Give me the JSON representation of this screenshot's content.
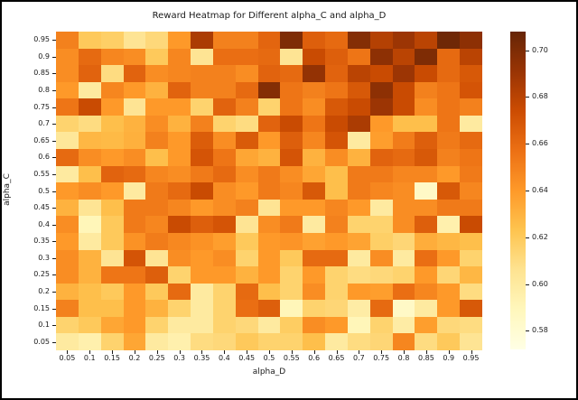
{
  "chart_data": {
    "type": "heatmap",
    "title": "Reward Heatmap for Different alpha_C and alpha_D",
    "xlabel": "alpha_D",
    "ylabel": "alpha_C",
    "x_ticks": [
      "0.05",
      "0.1",
      "0.15",
      "0.2",
      "0.25",
      "0.3",
      "0.35",
      "0.4",
      "0.45",
      "0.5",
      "0.55",
      "0.6",
      "0.65",
      "0.7",
      "0.75",
      "0.8",
      "0.85",
      "0.9",
      "0.95"
    ],
    "y_ticks": [
      "0.95",
      "0.9",
      "0.85",
      "0.8",
      "0.75",
      "0.7",
      "0.65",
      "0.6",
      "0.55",
      "0.5",
      "0.45",
      "0.4",
      "0.35",
      "0.3",
      "0.25",
      "0.2",
      "0.15",
      "0.1",
      "0.05"
    ],
    "grid": false,
    "legend": "colorbar-right",
    "colorbar": {
      "tick_labels": [
        "0.70",
        "0.68",
        "0.66",
        "0.64",
        "0.62",
        "0.60",
        "0.58"
      ],
      "tick_values": [
        0.7,
        0.68,
        0.66,
        0.64,
        0.62,
        0.6,
        0.58
      ],
      "vmin": 0.572,
      "vmax": 0.708
    },
    "colormap_name": "YlOrBr",
    "colormap_stops": [
      [
        0.0,
        "#ffffe5"
      ],
      [
        0.125,
        "#fff7bc"
      ],
      [
        0.25,
        "#fee391"
      ],
      [
        0.375,
        "#fec44f"
      ],
      [
        0.5,
        "#fe9929"
      ],
      [
        0.625,
        "#ec7014"
      ],
      [
        0.75,
        "#cc4c02"
      ],
      [
        0.875,
        "#993404"
      ],
      [
        1.0,
        "#662506"
      ]
    ],
    "values": [
      [
        0.65,
        0.62,
        0.617,
        0.605,
        0.612,
        0.64,
        0.685,
        0.65,
        0.65,
        0.662,
        0.7,
        0.665,
        0.66,
        0.698,
        0.682,
        0.69,
        0.68,
        0.705,
        0.695
      ],
      [
        0.645,
        0.66,
        0.648,
        0.645,
        0.62,
        0.648,
        0.605,
        0.658,
        0.658,
        0.66,
        0.605,
        0.675,
        0.665,
        0.655,
        0.695,
        0.68,
        0.7,
        0.66,
        0.68
      ],
      [
        0.645,
        0.663,
        0.61,
        0.663,
        0.645,
        0.648,
        0.65,
        0.65,
        0.645,
        0.663,
        0.66,
        0.693,
        0.663,
        0.68,
        0.675,
        0.69,
        0.675,
        0.66,
        0.668
      ],
      [
        0.64,
        0.6,
        0.648,
        0.64,
        0.63,
        0.663,
        0.65,
        0.65,
        0.66,
        0.698,
        0.655,
        0.65,
        0.655,
        0.668,
        0.695,
        0.675,
        0.65,
        0.655,
        0.67
      ],
      [
        0.655,
        0.675,
        0.64,
        0.605,
        0.64,
        0.64,
        0.615,
        0.663,
        0.65,
        0.615,
        0.655,
        0.645,
        0.668,
        0.675,
        0.69,
        0.675,
        0.645,
        0.655,
        0.65
      ],
      [
        0.615,
        0.61,
        0.625,
        0.63,
        0.645,
        0.63,
        0.65,
        0.615,
        0.61,
        0.663,
        0.675,
        0.655,
        0.675,
        0.685,
        0.64,
        0.625,
        0.625,
        0.655,
        0.6
      ],
      [
        0.603,
        0.628,
        0.627,
        0.631,
        0.65,
        0.64,
        0.666,
        0.645,
        0.667,
        0.64,
        0.665,
        0.648,
        0.67,
        0.6,
        0.638,
        0.652,
        0.665,
        0.653,
        0.66
      ],
      [
        0.66,
        0.645,
        0.64,
        0.645,
        0.625,
        0.64,
        0.67,
        0.655,
        0.635,
        0.63,
        0.67,
        0.63,
        0.645,
        0.63,
        0.663,
        0.66,
        0.668,
        0.65,
        0.655
      ],
      [
        0.6,
        0.625,
        0.663,
        0.66,
        0.648,
        0.645,
        0.653,
        0.66,
        0.645,
        0.653,
        0.645,
        0.635,
        0.625,
        0.653,
        0.653,
        0.648,
        0.648,
        0.64,
        0.653
      ],
      [
        0.64,
        0.645,
        0.64,
        0.6,
        0.653,
        0.66,
        0.675,
        0.645,
        0.64,
        0.653,
        0.648,
        0.668,
        0.625,
        0.653,
        0.648,
        0.645,
        0.585,
        0.668,
        0.648
      ],
      [
        0.63,
        0.605,
        0.625,
        0.653,
        0.653,
        0.648,
        0.64,
        0.645,
        0.65,
        0.605,
        0.64,
        0.64,
        0.648,
        0.64,
        0.6,
        0.645,
        0.645,
        0.653,
        0.653
      ],
      [
        0.645,
        0.59,
        0.62,
        0.653,
        0.648,
        0.675,
        0.665,
        0.67,
        0.605,
        0.645,
        0.653,
        0.6,
        0.65,
        0.615,
        0.615,
        0.645,
        0.665,
        0.595,
        0.675
      ],
      [
        0.64,
        0.6,
        0.62,
        0.643,
        0.652,
        0.647,
        0.643,
        0.638,
        0.62,
        0.64,
        0.642,
        0.637,
        0.64,
        0.636,
        0.617,
        0.613,
        0.632,
        0.628,
        0.625
      ],
      [
        0.645,
        0.63,
        0.605,
        0.67,
        0.605,
        0.645,
        0.64,
        0.645,
        0.615,
        0.64,
        0.62,
        0.66,
        0.66,
        0.6,
        0.645,
        0.6,
        0.658,
        0.64,
        0.615
      ],
      [
        0.645,
        0.63,
        0.655,
        0.655,
        0.665,
        0.615,
        0.64,
        0.64,
        0.63,
        0.64,
        0.615,
        0.64,
        0.615,
        0.61,
        0.612,
        0.615,
        0.64,
        0.613,
        0.628
      ],
      [
        0.63,
        0.625,
        0.62,
        0.64,
        0.62,
        0.66,
        0.6,
        0.615,
        0.66,
        0.625,
        0.615,
        0.645,
        0.615,
        0.64,
        0.638,
        0.658,
        0.648,
        0.64,
        0.61
      ],
      [
        0.65,
        0.625,
        0.625,
        0.64,
        0.63,
        0.615,
        0.6,
        0.615,
        0.658,
        0.665,
        0.59,
        0.615,
        0.613,
        0.598,
        0.66,
        0.585,
        0.6,
        0.64,
        0.668
      ],
      [
        0.615,
        0.62,
        0.635,
        0.64,
        0.615,
        0.6,
        0.6,
        0.615,
        0.612,
        0.6,
        0.618,
        0.645,
        0.64,
        0.59,
        0.615,
        0.598,
        0.638,
        0.612,
        0.61
      ],
      [
        0.6,
        0.595,
        0.615,
        0.635,
        0.6,
        0.595,
        0.61,
        0.612,
        0.62,
        0.615,
        0.615,
        0.625,
        0.6,
        0.61,
        0.613,
        0.648,
        0.61,
        0.62,
        0.605
      ]
    ],
    "text_color": "#1a1a1a",
    "background_color": "#ffffff",
    "frame_border_color": "#000000"
  }
}
